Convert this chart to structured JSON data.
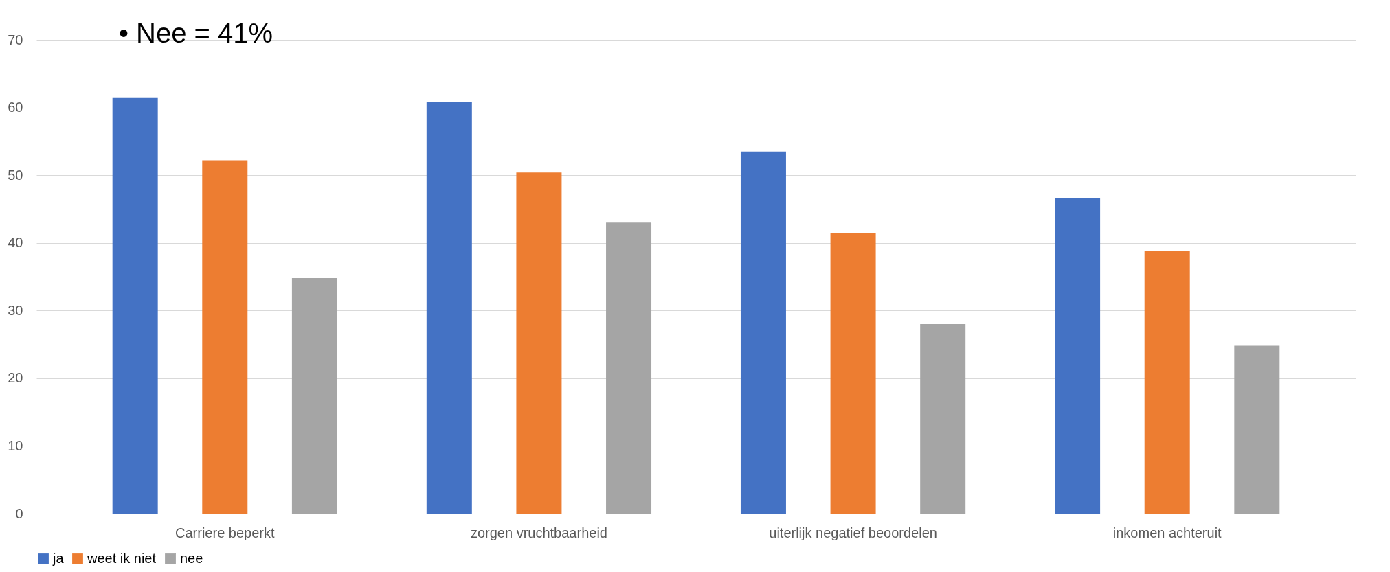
{
  "chart_data": {
    "type": "bar",
    "categories": [
      "Carriere beperkt",
      "zorgen vruchtbaarheid",
      "uiterlijk negatief beoordelen",
      "inkomen achteruit"
    ],
    "series": [
      {
        "name": "ja",
        "color": "#4472c4",
        "values": [
          61.5,
          60.8,
          53.5,
          46.6
        ]
      },
      {
        "name": "weet ik niet",
        "color": "#ed7d31",
        "values": [
          52.2,
          50.4,
          41.5,
          38.8
        ]
      },
      {
        "name": "nee",
        "color": "#a5a5a5",
        "values": [
          34.8,
          43.0,
          28.0,
          24.8
        ]
      }
    ],
    "ylim": [
      0,
      70
    ],
    "yticks": [
      0,
      10,
      20,
      30,
      40,
      50,
      60,
      70
    ],
    "grid": "y",
    "legend": "bottom",
    "annotations": [
      "• Nee = 41%"
    ]
  }
}
